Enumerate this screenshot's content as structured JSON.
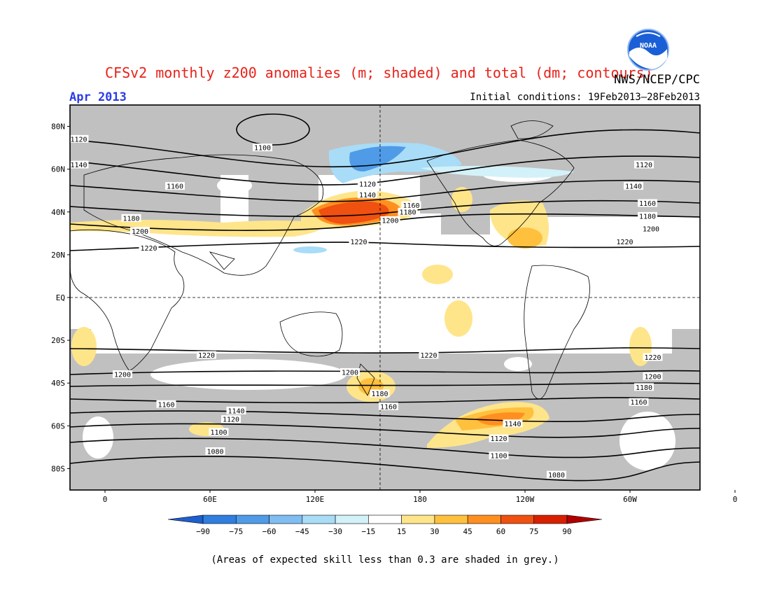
{
  "header": {
    "title": "CFSv2 monthly z200 anomalies (m; shaded) and total (dm; contours)",
    "source": "NWS/NCEP/CPC",
    "month": "Apr 2013",
    "initial_conditions": "Initial conditions: 19Feb2013–28Feb2013",
    "logo_text": "NOAA"
  },
  "axes": {
    "lat_ticks": [
      "80N",
      "60N",
      "40N",
      "20N",
      "EQ",
      "20S",
      "40S",
      "60S",
      "80S"
    ],
    "lon_ticks": [
      "0",
      "60E",
      "120E",
      "180",
      "120W",
      "60W",
      "0"
    ]
  },
  "colorbar": {
    "labels": [
      "-90",
      "-75",
      "-60",
      "-45",
      "-30",
      "-15",
      "15",
      "30",
      "45",
      "60",
      "75",
      "90"
    ],
    "colors": [
      "#1e5fd0",
      "#2f7ee0",
      "#4f9be8",
      "#7fbdf2",
      "#a8dcf7",
      "#d3f1f9",
      "#ffffff",
      "#ffe58a",
      "#ffc03e",
      "#ff9020",
      "#f05010",
      "#d82000",
      "#b00000"
    ]
  },
  "map": {
    "grey": "#c0c0c0",
    "contour_labels": [
      {
        "label": "1120",
        "lat": 74,
        "lon": -15
      },
      {
        "label": "1100",
        "lat": 70,
        "lon": 90
      },
      {
        "label": "1140",
        "lat": 62,
        "lon": -15
      },
      {
        "label": "1160",
        "lat": 52,
        "lon": 40
      },
      {
        "label": "1180",
        "lat": 37,
        "lon": 15
      },
      {
        "label": "1200",
        "lat": 31,
        "lon": 20
      },
      {
        "label": "1220",
        "lat": 23,
        "lon": 25
      },
      {
        "label": "1120",
        "lat": 53,
        "lon": 150
      },
      {
        "label": "1140",
        "lat": 48,
        "lon": 150
      },
      {
        "label": "1160",
        "lat": 43,
        "lon": 175
      },
      {
        "label": "1180",
        "lat": 40,
        "lon": 173
      },
      {
        "label": "1200",
        "lat": 36,
        "lon": 163
      },
      {
        "label": "1220",
        "lat": 26,
        "lon": 145
      },
      {
        "label": "1120",
        "lat": 62,
        "lon": -52
      },
      {
        "label": "1140",
        "lat": 52,
        "lon": -58
      },
      {
        "label": "1160",
        "lat": 44,
        "lon": -50
      },
      {
        "label": "1180",
        "lat": 38,
        "lon": -50
      },
      {
        "label": "1200",
        "lat": 32,
        "lon": -48
      },
      {
        "label": "1220",
        "lat": 26,
        "lon": -63
      },
      {
        "label": "1220",
        "lat": -27,
        "lon": 58
      },
      {
        "label": "1220",
        "lat": -27,
        "lon": -175
      },
      {
        "label": "1220",
        "lat": -28,
        "lon": -47
      },
      {
        "label": "1200",
        "lat": -36,
        "lon": 10
      },
      {
        "label": "1200",
        "lat": -35,
        "lon": 140
      },
      {
        "label": "1200",
        "lat": -37,
        "lon": -47
      },
      {
        "label": "1180",
        "lat": -45,
        "lon": 157
      },
      {
        "label": "1180",
        "lat": -42,
        "lon": -52
      },
      {
        "label": "1160",
        "lat": -50,
        "lon": 35
      },
      {
        "label": "1160",
        "lat": -51,
        "lon": 162
      },
      {
        "label": "1160",
        "lat": -49,
        "lon": -55
      },
      {
        "label": "1140",
        "lat": -53,
        "lon": 75
      },
      {
        "label": "1140",
        "lat": -59,
        "lon": -127
      },
      {
        "label": "1120",
        "lat": -57,
        "lon": 72
      },
      {
        "label": "1120",
        "lat": -66,
        "lon": -135
      },
      {
        "label": "1100",
        "lat": -63,
        "lon": 65
      },
      {
        "label": "1100",
        "lat": -74,
        "lon": -135
      },
      {
        "label": "1080",
        "lat": -72,
        "lon": 63
      },
      {
        "label": "1080",
        "lat": -83,
        "lon": -102
      }
    ]
  }
}
